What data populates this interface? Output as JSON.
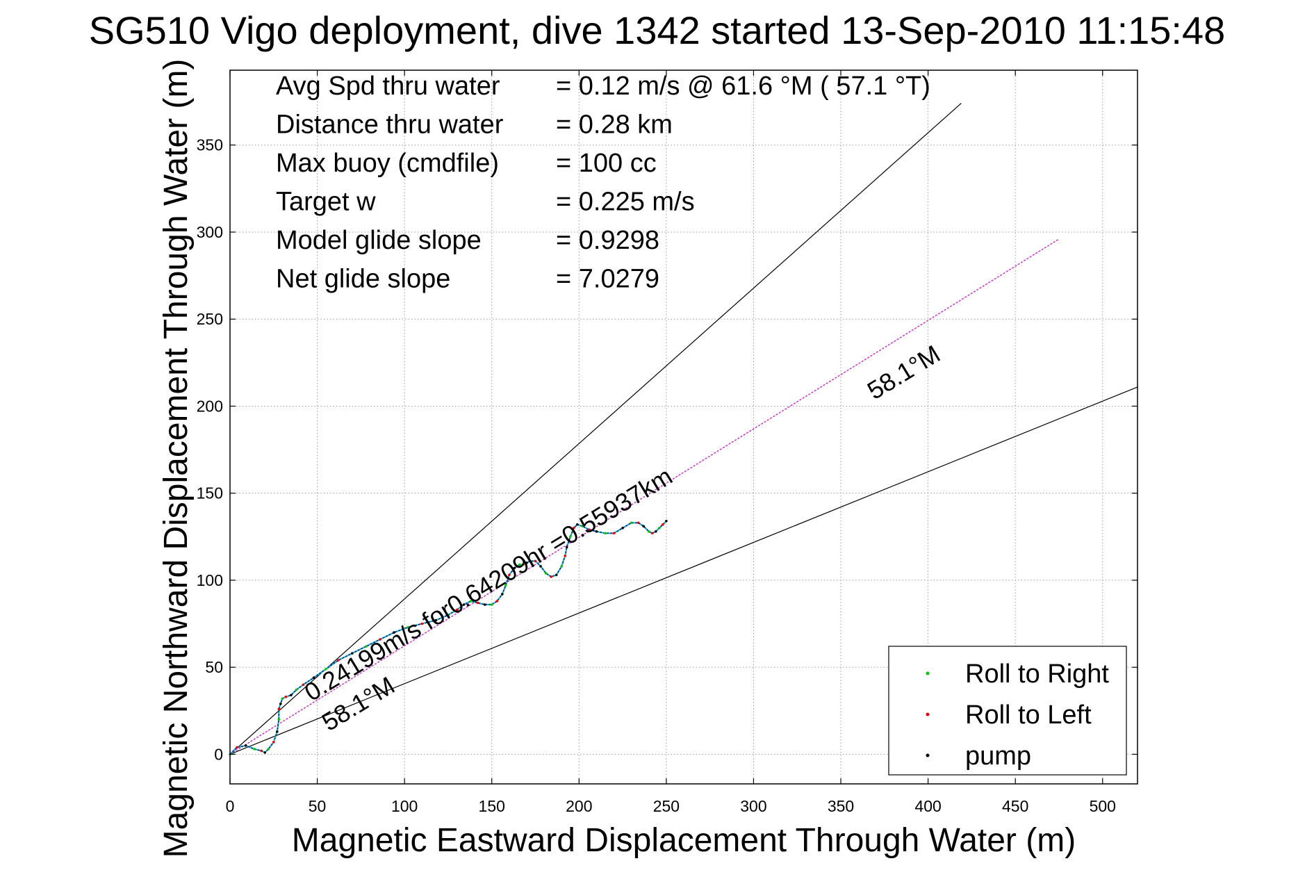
{
  "chart_data": {
    "type": "line",
    "title": "SG510 Vigo deployment, dive 1342 started 13-Sep-2010 11:15:48",
    "xlabel": "Magnetic Eastward Displacement Through Water (m)",
    "ylabel": "Magnetic Northward Displacement Through Water (m)",
    "xlim": [
      0,
      520
    ],
    "ylim": [
      -17,
      393
    ],
    "xticks": [
      0,
      50,
      100,
      150,
      200,
      250,
      300,
      350,
      400,
      450,
      500
    ],
    "yticks": [
      0,
      50,
      100,
      150,
      200,
      250,
      300,
      350
    ],
    "grid": true,
    "legend_position": "bottom-right",
    "stats": [
      {
        "label": "Avg Spd thru water",
        "value": "=  0.12 m/s @  61.6 °M ( 57.1 °T)"
      },
      {
        "label": "Distance thru water",
        "value": "=  0.28 km"
      },
      {
        "label": "Max buoy (cmdfile)",
        "value": "= 100 cc"
      },
      {
        "label": "Target w",
        "value": "= 0.225 m/s"
      },
      {
        "label": "Model glide slope",
        "value": "= 0.9298"
      },
      {
        "label": "Net glide slope",
        "value": "= 7.0279"
      }
    ],
    "annotations": [
      {
        "text": "0.24199m/s for0.64209hr =0.55937km"
      },
      {
        "text": "58.1°M"
      },
      {
        "text": "58.1°M"
      }
    ],
    "reference_lines": [
      {
        "style": "black",
        "x": [
          0,
          419
        ],
        "y": [
          0,
          374
        ]
      },
      {
        "style": "black",
        "x": [
          0,
          520
        ],
        "y": [
          0,
          211
        ]
      },
      {
        "style": "magenta-dotted",
        "x": [
          0,
          475
        ],
        "y": [
          0,
          296
        ]
      }
    ],
    "track": {
      "x": [
        0,
        4,
        9,
        14,
        18,
        20,
        22,
        25,
        27,
        28,
        28,
        29,
        30,
        32,
        35,
        38,
        42,
        48,
        55,
        62,
        70,
        78,
        86,
        94,
        102,
        110,
        118,
        125,
        130,
        134,
        138,
        142,
        146,
        150,
        153,
        156,
        158,
        160,
        163,
        166,
        168,
        170,
        172,
        175,
        178,
        181,
        184,
        187,
        190,
        192,
        193,
        195,
        197,
        199,
        202,
        206,
        210,
        215,
        220,
        225,
        230,
        234,
        237,
        240,
        242,
        244,
        246,
        248,
        250
      ],
      "y": [
        0,
        4,
        5,
        3,
        2,
        1,
        3,
        7,
        13,
        20,
        26,
        29,
        32,
        33,
        34,
        37,
        40,
        44,
        49,
        54,
        58,
        62,
        66,
        70,
        73,
        75,
        77,
        80,
        83,
        86,
        88,
        87,
        86,
        86,
        88,
        92,
        97,
        103,
        107,
        109,
        109,
        110,
        111,
        111,
        108,
        104,
        102,
        103,
        108,
        114,
        119,
        125,
        130,
        132,
        131,
        129,
        128,
        127,
        127,
        130,
        133,
        133,
        131,
        128,
        127,
        128,
        130,
        132,
        134
      ]
    },
    "legend": [
      {
        "label": "Roll to Right",
        "color": "#00cc00"
      },
      {
        "label": "Roll to Left",
        "color": "#ee0000"
      },
      {
        "label": "pump",
        "color": "#000000"
      }
    ],
    "colors": {
      "track": "#0a2a9a",
      "track_alt": "#2ec4c4",
      "reference": "#000000",
      "magenta": "#cc33cc",
      "grid": "#9a9a9a"
    }
  }
}
